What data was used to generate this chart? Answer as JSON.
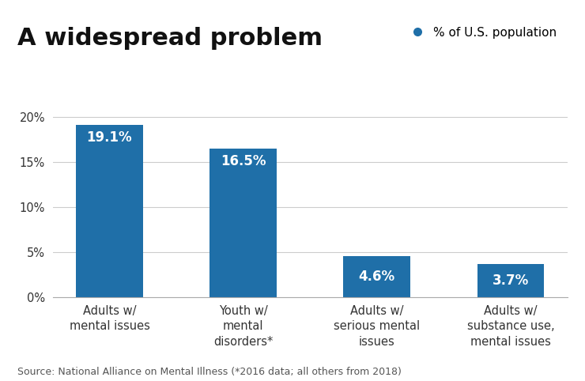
{
  "title": "A widespread problem",
  "legend_label": "% of U.S. population",
  "legend_dot_color": "#1f6fa8",
  "categories": [
    "Adults w/\nmental issues",
    "Youth w/\nmental\ndisorders*",
    "Adults w/\nserious mental\nissues",
    "Adults w/\nsubstance use,\nmental issues"
  ],
  "values": [
    19.1,
    16.5,
    4.6,
    3.7
  ],
  "bar_labels": [
    "19.1%",
    "16.5%",
    "4.6%",
    "3.7%"
  ],
  "bar_color": "#1f6fa8",
  "bar_label_color": "#ffffff",
  "bar_label_fontsize": 12,
  "ylim": [
    0,
    22
  ],
  "yticks": [
    0,
    5,
    10,
    15,
    20
  ],
  "ytick_labels": [
    "0%",
    "5%",
    "10%",
    "15%",
    "20%"
  ],
  "title_fontsize": 22,
  "tick_label_fontsize": 10.5,
  "source_text": "Source: National Alliance on Mental Illness (*2016 data; all others from 2018)",
  "source_fontsize": 9,
  "background_color": "#ffffff",
  "grid_color": "#cccccc"
}
